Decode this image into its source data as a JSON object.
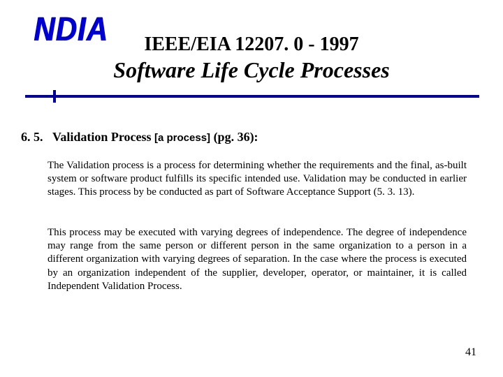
{
  "logo_text": "NDIA",
  "title_line1": "IEEE/EIA 12207. 0 - 1997",
  "title_line2": "Software Life Cycle Processes",
  "section": {
    "number": "6. 5.",
    "name": "Validation Process",
    "tag": "[a process]",
    "page_ref": "(pg. 36):"
  },
  "paragraph1": "The Validation process is a process for determining whether the requirements and the final, as-built system or software product fulfills its specific intended use. Validation may be conducted in earlier stages.  This process by be conducted as part of Software Acceptance Support (5. 3. 13).",
  "paragraph2": "This process may be executed with varying degrees of independence.  The degree of independence may range from the same person or different person in the same organization to a person in a different organization with varying degrees of separation.  In the case where the process is executed by an organization independent of the supplier, developer, operator, or maintainer, it is called Independent Validation Process.",
  "page_number": "41",
  "colors": {
    "logo": "#0000cc",
    "rule": "#000099",
    "text": "#000000",
    "background": "#ffffff"
  },
  "fonts": {
    "body": "Times New Roman",
    "logo": "Arial Black",
    "tag": "Arial"
  }
}
